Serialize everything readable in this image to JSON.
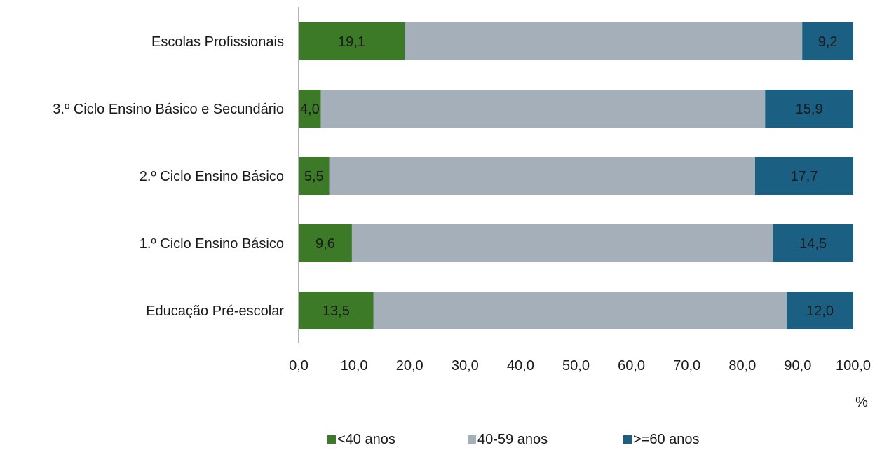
{
  "chart_data": {
    "type": "bar",
    "orientation": "horizontal",
    "stacked": true,
    "categories": [
      "Escolas Profissionais",
      "3.º Ciclo Ensino Básico e Secundário",
      "2.º Ciclo Ensino Básico",
      "1.º Ciclo Ensino Básico",
      "Educação Pré-escolar"
    ],
    "series": [
      {
        "name": "<40 anos",
        "color": "#3d7a28",
        "values": [
          19.1,
          4.0,
          5.5,
          9.6,
          13.5
        ],
        "labels": [
          "19,1",
          "4,0",
          "5,5",
          "9,6",
          "13,5"
        ]
      },
      {
        "name": "40-59 anos",
        "color": "#a5afba",
        "values": [
          71.7,
          80.1,
          76.8,
          75.9,
          74.5
        ],
        "labels": null
      },
      {
        "name": ">=60 anos",
        "color": "#1b5f82",
        "values": [
          9.2,
          15.9,
          17.7,
          14.5,
          12.0
        ],
        "labels": [
          "9,2",
          "15,9",
          "17,7",
          "14,5",
          "12,0"
        ]
      }
    ],
    "xlim": [
      0,
      100
    ],
    "xticks": [
      "0,0",
      "10,0",
      "20,0",
      "30,0",
      "40,0",
      "50,0",
      "60,0",
      "70,0",
      "80,0",
      "90,0",
      "100,0"
    ],
    "xlabel": "%",
    "grid": false,
    "legend_position": "bottom"
  }
}
